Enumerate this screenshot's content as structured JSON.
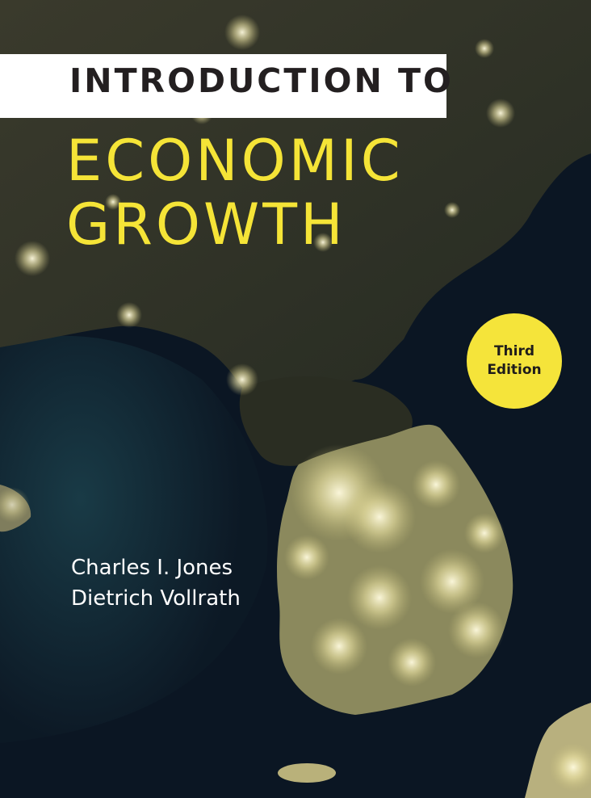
{
  "book": {
    "title_line_1": "INTRODUCTION TO",
    "title_line_2": "ECONOMIC",
    "title_line_3": "GROWTH",
    "edition_line_1": "Third",
    "edition_line_2": "Edition",
    "authors": [
      "Charles I. Jones",
      "Dietrich Vollrath"
    ]
  },
  "colors": {
    "title_yellow": "#f5e437",
    "badge_yellow": "#f5e43a",
    "title_bar": "#ffffff",
    "sea": "#0c1824",
    "land": "#2f3226",
    "city_lights": "#fff6c8"
  },
  "image": {
    "subject": "satellite-night-view-korean-peninsula"
  }
}
